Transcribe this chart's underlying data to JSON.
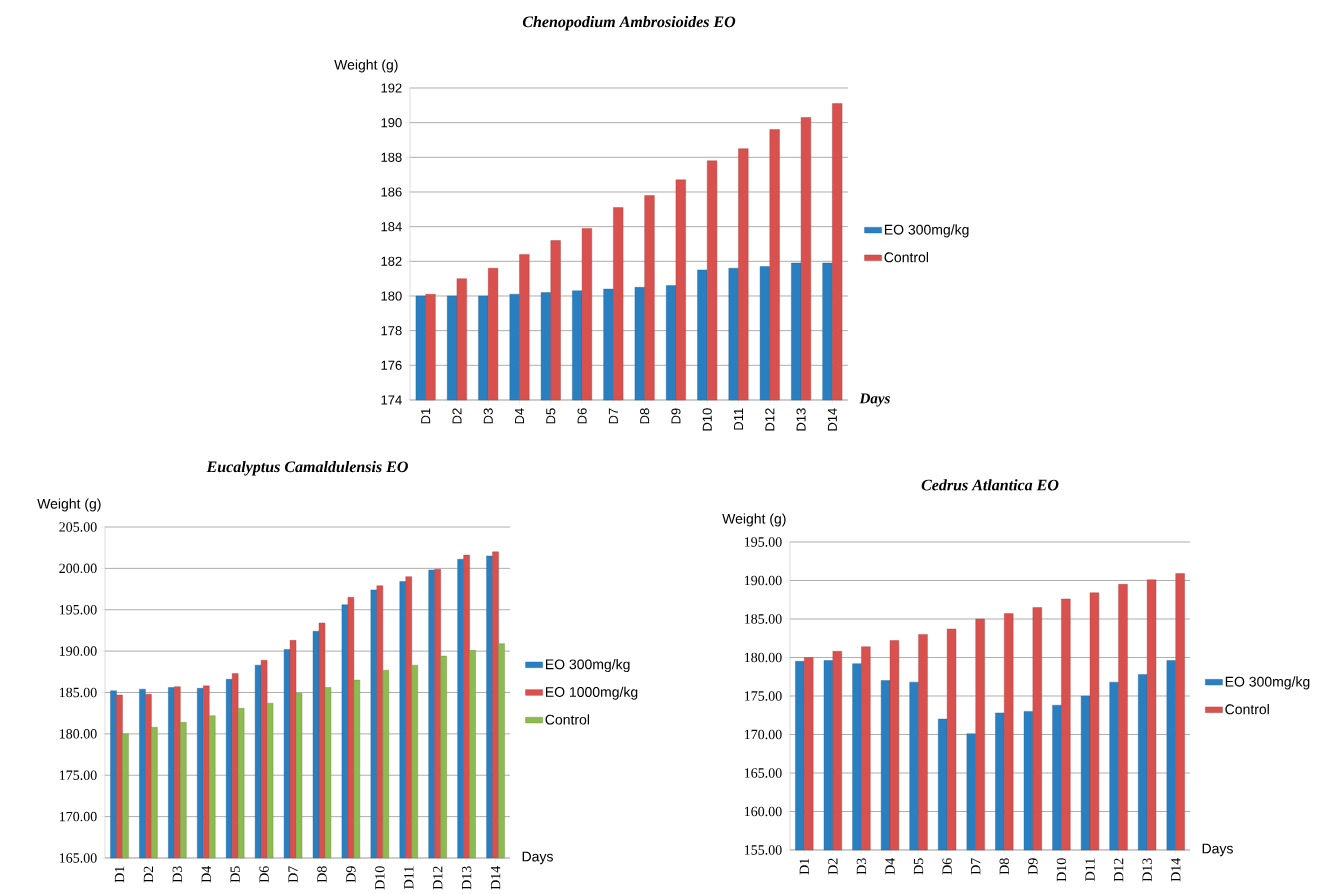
{
  "chart_data": [
    {
      "type": "bar",
      "title": "Chenopodium Ambrosioides EO",
      "xlabel": "Days",
      "ylabel": "Weight (g)",
      "categories": [
        "D1",
        "D2",
        "D3",
        "D4",
        "D5",
        "D6",
        "D7",
        "D8",
        "D9",
        "D10",
        "D11",
        "D12",
        "D13",
        "D14"
      ],
      "series": [
        {
          "name": "EO 300mg/kg",
          "color": "#2a7fc1",
          "values": [
            180.0,
            180.0,
            180.0,
            180.1,
            180.2,
            180.3,
            180.4,
            180.5,
            180.6,
            181.5,
            181.6,
            181.7,
            181.9,
            181.9
          ]
        },
        {
          "name": "Control",
          "color": "#d9514e",
          "values": [
            180.1,
            181.0,
            181.6,
            182.4,
            183.2,
            183.9,
            185.1,
            185.8,
            186.7,
            187.8,
            188.5,
            189.6,
            190.3,
            191.1
          ]
        }
      ],
      "ylim": [
        174,
        192
      ],
      "yticks": [
        174,
        176,
        178,
        180,
        182,
        184,
        186,
        188,
        190,
        192
      ],
      "grid": "y",
      "legend": "right"
    },
    {
      "type": "bar",
      "title": "Eucalyptus Camaldulensis EO",
      "xlabel": "Days",
      "ylabel": "Weight (g)",
      "categories": [
        "D1",
        "D2",
        "D3",
        "D4",
        "D5",
        "D6",
        "D7",
        "D8",
        "D9",
        "D10",
        "D11",
        "D12",
        "D13",
        "D14"
      ],
      "series": [
        {
          "name": "EO 300mg/kg",
          "color": "#2a7fc1",
          "values": [
            185.2,
            185.4,
            185.6,
            185.5,
            186.6,
            188.3,
            190.2,
            192.4,
            195.6,
            197.4,
            198.4,
            199.8,
            201.1,
            201.5
          ]
        },
        {
          "name": "EO 1000mg/kg",
          "color": "#d9514e",
          "values": [
            184.7,
            184.8,
            185.7,
            185.8,
            187.3,
            188.9,
            191.3,
            193.4,
            196.5,
            197.9,
            199.0,
            199.9,
            201.6,
            202.0
          ]
        },
        {
          "name": "Control",
          "color": "#8cbb4f",
          "values": [
            180.0,
            180.8,
            181.4,
            182.2,
            183.1,
            183.7,
            184.9,
            185.6,
            186.5,
            187.7,
            188.3,
            189.4,
            190.1,
            190.9
          ]
        }
      ],
      "ylim": [
        165,
        205
      ],
      "yticks": [
        {
          "value": 165,
          "label": "165.00"
        },
        {
          "value": 170,
          "label": "170.00"
        },
        {
          "value": 175,
          "label": "175.00"
        },
        {
          "value": 180,
          "label": "180.00"
        },
        {
          "value": 185,
          "label": "185.00"
        },
        {
          "value": 190,
          "label": "190.00"
        },
        {
          "value": 195,
          "label": "195.00"
        },
        {
          "value": 200,
          "label": "200.00"
        },
        {
          "value": 205,
          "label": "205.00"
        }
      ],
      "grid": "y",
      "legend": "right"
    },
    {
      "type": "bar",
      "title": "Cedrus Atlantica EO",
      "xlabel": "Days",
      "ylabel": "Weight (g)",
      "categories": [
        "D1",
        "D2",
        "D3",
        "D4",
        "D5",
        "D6",
        "D7",
        "D8",
        "D9",
        "D10",
        "D11",
        "D12",
        "D13",
        "D14"
      ],
      "series": [
        {
          "name": "EO 300mg/kg",
          "color": "#2a7fc1",
          "values": [
            179.5,
            179.6,
            179.2,
            177.0,
            176.8,
            172.0,
            170.1,
            172.8,
            173.0,
            173.8,
            175.0,
            176.8,
            177.8,
            179.6
          ]
        },
        {
          "name": "Control",
          "color": "#d9514e",
          "values": [
            180.0,
            180.8,
            181.4,
            182.2,
            183.0,
            183.7,
            185.0,
            185.7,
            186.5,
            187.6,
            188.4,
            189.5,
            190.1,
            190.9
          ]
        }
      ],
      "ylim": [
        155,
        195
      ],
      "yticks": [
        {
          "value": 155,
          "label": "155.00"
        },
        {
          "value": 160,
          "label": "160.00"
        },
        {
          "value": 165,
          "label": "165.00"
        },
        {
          "value": 170,
          "label": "170.00"
        },
        {
          "value": 175,
          "label": "175.00"
        },
        {
          "value": 180,
          "label": "180.00"
        },
        {
          "value": 185,
          "label": "185.00"
        },
        {
          "value": 190,
          "label": "190.00"
        },
        {
          "value": 195,
          "label": "195.00"
        }
      ],
      "grid": "y",
      "legend": "right"
    }
  ]
}
